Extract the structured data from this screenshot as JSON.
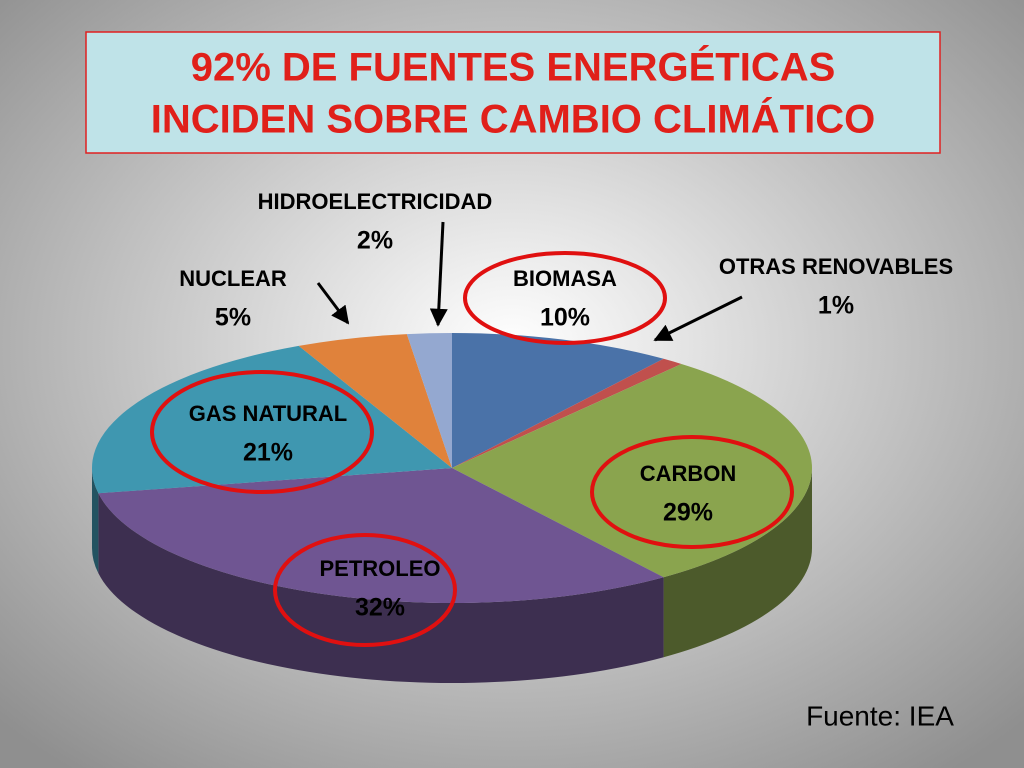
{
  "chart_data": {
    "type": "pie",
    "title": [
      "92% DE FUENTES ENERGÉTICAS",
      "INCIDEN SOBRE CAMBIO CLIMÁTICO"
    ],
    "categories": [
      "BIOMASA",
      "OTRAS RENOVABLES",
      "CARBON",
      "PETROLEO",
      "GAS NATURAL",
      "NUCLEAR",
      "HIDROELECTRICIDAD"
    ],
    "values": [
      10,
      1,
      29,
      32,
      21,
      5,
      2
    ],
    "value_labels": [
      "10%",
      "1%",
      "29%",
      "32%",
      "21%",
      "5%",
      "2%"
    ],
    "colors": [
      "#4a72a8",
      "#c0504d",
      "#8aa44e",
      "#6f5592",
      "#3f97b0",
      "#e0823b",
      "#94a8d0"
    ],
    "highlighted": [
      0,
      2,
      3,
      4
    ],
    "source": "Fuente: IEA"
  }
}
